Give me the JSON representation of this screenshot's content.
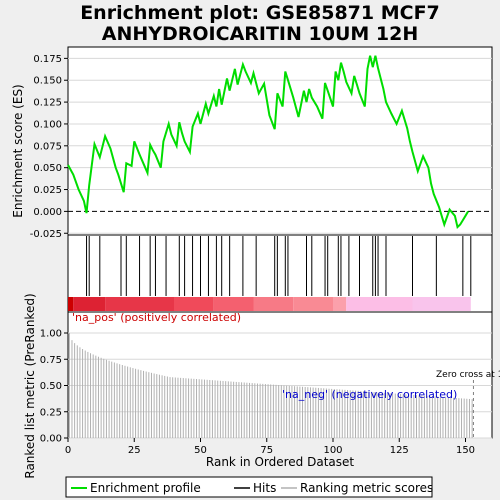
{
  "chart_data": {
    "type": "line",
    "title_line1": "Enrichment plot: GSE85871 MCF7",
    "title_line2": "ANHYDROICARITIN 10UM 12H",
    "top_panel": {
      "ylabel": "Enrichment score (ES)",
      "ylim": [
        -0.027,
        0.188
      ],
      "yticks": [
        "-0.025",
        "0.000",
        "0.025",
        "0.050",
        "0.075",
        "0.100",
        "0.125",
        "0.150",
        "0.175"
      ],
      "ytick_values": [
        -0.025,
        0.0,
        0.025,
        0.05,
        0.075,
        0.1,
        0.125,
        0.15,
        0.175
      ],
      "es_x": [
        0,
        2,
        4,
        6,
        7,
        8,
        10,
        12,
        14,
        16,
        18,
        19,
        20,
        21,
        22,
        24,
        25,
        27,
        28,
        30,
        31,
        32,
        33,
        35,
        36,
        38,
        39,
        41,
        42,
        43,
        44,
        46,
        47,
        49,
        50,
        52,
        53,
        55,
        56,
        57,
        58,
        60,
        61,
        63,
        64,
        66,
        67,
        69,
        70,
        72,
        74,
        76,
        78,
        79,
        81,
        82,
        83,
        85,
        87,
        89,
        90,
        91,
        92,
        94,
        96,
        97,
        98,
        100,
        101,
        102,
        103,
        104,
        105,
        107,
        108,
        109,
        110,
        112,
        113,
        114,
        115,
        116,
        117,
        118,
        119,
        120,
        122,
        124,
        126,
        128,
        129,
        130,
        132,
        134,
        136,
        137,
        138,
        140,
        142,
        144,
        146,
        147,
        148,
        149,
        150,
        151
      ],
      "es_y": [
        0.053,
        0.042,
        0.025,
        0.012,
        -0.002,
        0.03,
        0.077,
        0.062,
        0.086,
        0.072,
        0.05,
        0.042,
        0.032,
        0.022,
        0.055,
        0.052,
        0.08,
        0.065,
        0.058,
        0.044,
        0.076,
        0.07,
        0.065,
        0.05,
        0.08,
        0.1,
        0.088,
        0.075,
        0.102,
        0.09,
        0.08,
        0.068,
        0.097,
        0.112,
        0.1,
        0.123,
        0.112,
        0.132,
        0.12,
        0.14,
        0.122,
        0.152,
        0.138,
        0.163,
        0.145,
        0.168,
        0.16,
        0.147,
        0.158,
        0.135,
        0.146,
        0.11,
        0.094,
        0.135,
        0.12,
        0.16,
        0.15,
        0.13,
        0.108,
        0.138,
        0.125,
        0.14,
        0.13,
        0.12,
        0.106,
        0.147,
        0.138,
        0.12,
        0.16,
        0.15,
        0.17,
        0.16,
        0.148,
        0.135,
        0.155,
        0.145,
        0.135,
        0.12,
        0.163,
        0.178,
        0.165,
        0.178,
        0.164,
        0.152,
        0.14,
        0.125,
        0.112,
        0.1,
        0.115,
        0.095,
        0.08,
        0.068,
        0.046,
        0.063,
        0.05,
        0.032,
        0.02,
        0.005,
        -0.015,
        0.002,
        -0.005,
        -0.018,
        -0.015,
        -0.01,
        -0.005,
        0.0
      ]
    },
    "hits": [
      7,
      8,
      12,
      20,
      22,
      27,
      31,
      33,
      37,
      42,
      44,
      47,
      50,
      53,
      56,
      58,
      61,
      66,
      71,
      78,
      79,
      82,
      83,
      90,
      92,
      97,
      98,
      102,
      103,
      106,
      110,
      115,
      116,
      117,
      120,
      130,
      139,
      149,
      152
    ],
    "color_bar": {
      "xlim": [
        0,
        160
      ],
      "segments": [
        {
          "from": 0,
          "to": 2,
          "color": "#cc0000"
        },
        {
          "from": 2,
          "to": 14,
          "color": "#dd2233"
        },
        {
          "from": 14,
          "to": 40,
          "color": "#e73648"
        },
        {
          "from": 40,
          "to": 55,
          "color": "#f04a5a"
        },
        {
          "from": 55,
          "to": 70,
          "color": "#f4606f"
        },
        {
          "from": 70,
          "to": 85,
          "color": "#f77a86"
        },
        {
          "from": 85,
          "to": 100,
          "color": "#f98a94"
        },
        {
          "from": 100,
          "to": 105,
          "color": "#fba0ab"
        },
        {
          "from": 105,
          "to": 130,
          "color": "#fcbee6"
        },
        {
          "from": 130,
          "to": 152,
          "color": "#f9c4ec"
        }
      ]
    },
    "bottom_panel": {
      "ylabel": "Ranked list metric (PreRanked)",
      "xlabel": "Rank in Ordered Dataset",
      "ylim": [
        0,
        1.2
      ],
      "yticks": [
        "0.00",
        "0.25",
        "0.50",
        "0.75",
        "1.00"
      ],
      "ytick_values": [
        0.0,
        0.25,
        0.5,
        0.75,
        1.0
      ],
      "metric_start": 1.0,
      "metric_mid": 0.58,
      "metric_end": 0.37,
      "n_genes": 153,
      "zero_cross_label": "Zero cross at 153",
      "zero_cross_x": 153,
      "pos_label": "'na_pos' (positively correlated)",
      "neg_label": "'na_neg' (negatively correlated)"
    },
    "xlim": [
      0,
      160
    ],
    "xticks": [
      "0",
      "25",
      "50",
      "75",
      "100",
      "125",
      "150"
    ],
    "xtick_values": [
      0,
      25,
      50,
      75,
      100,
      125,
      150
    ],
    "legend": [
      {
        "label": "Enrichment profile",
        "color": "#00dd00"
      },
      {
        "label": "Hits",
        "color": "#000000"
      },
      {
        "label": "Ranking metric scores",
        "color": "#b0b0b0"
      }
    ]
  }
}
